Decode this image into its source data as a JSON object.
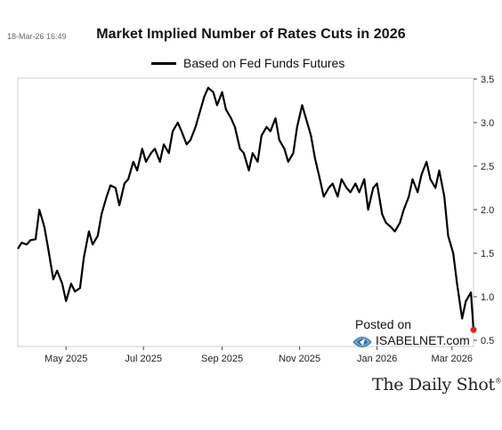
{
  "timestamp": "18-Mar-26 16:49",
  "watermark": {
    "posted": "Posted on",
    "site": "ISABELNET.com"
  },
  "brand": {
    "name": "The Daily Shot",
    "mark": "®"
  },
  "colors": {
    "line": "#000000",
    "last_point": "#e02020",
    "frame": "#cfcfcf"
  },
  "chart_data": {
    "type": "line",
    "title": "Market Implied Number of Rates Cuts in 2026",
    "xlabel": "",
    "ylabel": "",
    "ylim": [
      0.5,
      3.5
    ],
    "y_axis_side": "right",
    "yticks": [
      "0.5",
      "1.0",
      "1.5",
      "2.0",
      "2.5",
      "3.0",
      "3.5"
    ],
    "xticks": [
      "May 2025",
      "Jul 2025",
      "Sep 2025",
      "Nov 2025",
      "Jan 2026",
      "Mar 2026"
    ],
    "x": [
      "2025-03-24",
      "2025-03-27",
      "2025-03-31",
      "2025-04-03",
      "2025-04-07",
      "2025-04-10",
      "2025-04-14",
      "2025-04-17",
      "2025-04-21",
      "2025-04-24",
      "2025-04-28",
      "2025-05-01",
      "2025-05-05",
      "2025-05-08",
      "2025-05-12",
      "2025-05-15",
      "2025-05-19",
      "2025-05-22",
      "2025-05-26",
      "2025-05-29",
      "2025-06-02",
      "2025-06-05",
      "2025-06-09",
      "2025-06-12",
      "2025-06-16",
      "2025-06-19",
      "2025-06-23",
      "2025-06-26",
      "2025-06-30",
      "2025-07-03",
      "2025-07-07",
      "2025-07-10",
      "2025-07-14",
      "2025-07-17",
      "2025-07-21",
      "2025-07-24",
      "2025-07-28",
      "2025-07-31",
      "2025-08-04",
      "2025-08-07",
      "2025-08-11",
      "2025-08-14",
      "2025-08-18",
      "2025-08-21",
      "2025-08-25",
      "2025-08-28",
      "2025-09-01",
      "2025-09-04",
      "2025-09-08",
      "2025-09-11",
      "2025-09-15",
      "2025-09-18",
      "2025-09-22",
      "2025-09-25",
      "2025-09-29",
      "2025-10-02",
      "2025-10-06",
      "2025-10-09",
      "2025-10-13",
      "2025-10-16",
      "2025-10-20",
      "2025-10-23",
      "2025-10-27",
      "2025-10-30",
      "2025-11-03",
      "2025-11-06",
      "2025-11-10",
      "2025-11-13",
      "2025-11-17",
      "2025-11-20",
      "2025-11-24",
      "2025-11-27",
      "2025-12-01",
      "2025-12-04",
      "2025-12-08",
      "2025-12-11",
      "2025-12-15",
      "2025-12-18",
      "2025-12-22",
      "2025-12-25",
      "2025-12-29",
      "2026-01-01",
      "2026-01-05",
      "2026-01-08",
      "2026-01-12",
      "2026-01-15",
      "2026-01-19",
      "2026-01-22",
      "2026-01-26",
      "2026-01-29",
      "2026-02-02",
      "2026-02-05",
      "2026-02-09",
      "2026-02-12",
      "2026-02-16",
      "2026-02-19",
      "2026-02-23",
      "2026-02-26",
      "2026-03-02",
      "2026-03-05",
      "2026-03-09",
      "2026-03-12",
      "2026-03-16",
      "2026-03-18"
    ],
    "series": [
      {
        "values": [
          1.55,
          1.62,
          1.6,
          1.65,
          1.66,
          2.0,
          1.8,
          1.55,
          1.2,
          1.3,
          1.15,
          0.95,
          1.15,
          1.06,
          1.1,
          1.45,
          1.75,
          1.6,
          1.7,
          1.95,
          2.15,
          2.28,
          2.25,
          2.05,
          2.3,
          2.35,
          2.55,
          2.45,
          2.7,
          2.55,
          2.65,
          2.7,
          2.55,
          2.75,
          2.65,
          2.9,
          3.0,
          2.9,
          2.75,
          2.8,
          2.95,
          3.1,
          3.3,
          3.4,
          3.35,
          3.2,
          3.35,
          3.15,
          3.05,
          2.95,
          2.7,
          2.65,
          2.45,
          2.65,
          2.55,
          2.85,
          2.95,
          2.9,
          3.05,
          2.8,
          2.7,
          2.55,
          2.65,
          2.95,
          3.2,
          3.05,
          2.85,
          2.6,
          2.35,
          2.15,
          2.25,
          2.3,
          2.15,
          2.35,
          2.25,
          2.2,
          2.3,
          2.2,
          2.35,
          2.0,
          2.25,
          2.3,
          1.95,
          1.85,
          1.8,
          1.75,
          1.85,
          2.0,
          2.15,
          2.35,
          2.2,
          2.4,
          2.55,
          2.35,
          2.25,
          2.45,
          2.15,
          1.7,
          1.5,
          1.15,
          0.75,
          0.95,
          1.05,
          0.62
        ]
      }
    ]
  }
}
